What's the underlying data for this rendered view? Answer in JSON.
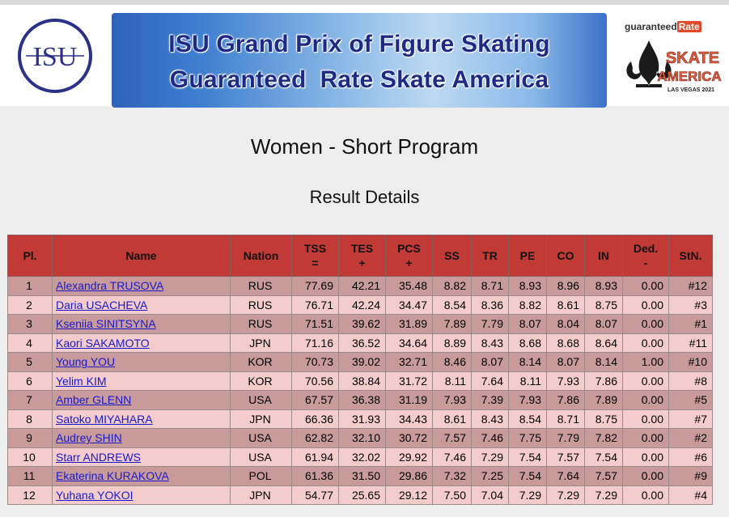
{
  "header": {
    "banner_line1": "ISU Grand Prix of Figure Skating",
    "banner_line2": "Guaranteed  Rate Skate America",
    "isu_logo_text": "ISU",
    "sponsor_text": "guaranteed",
    "sponsor_rate": "Rate",
    "skate_america_line1": "SKATE",
    "skate_america_line2": "AMERICA",
    "skate_america_sub": "LAS VEGAS 2021"
  },
  "page": {
    "title": "Women - Short Program",
    "subtitle": "Result Details"
  },
  "table": {
    "headers": {
      "pl": "Pl.",
      "name": "Name",
      "nation": "Nation",
      "tss": "TSS",
      "tss_sub": "=",
      "tes": "TES",
      "tes_sub": "+",
      "pcs": "PCS",
      "pcs_sub": "+",
      "ss": "SS",
      "tr": "TR",
      "pe": "PE",
      "co": "CO",
      "in": "IN",
      "ded": "Ded.",
      "ded_sub": "-",
      "stn": "StN."
    },
    "rows": [
      {
        "pl": "1",
        "name": "Alexandra TRUSOVA",
        "nation": "RUS",
        "tss": "77.69",
        "tes": "42.21",
        "pcs": "35.48",
        "ss": "8.82",
        "tr": "8.71",
        "pe": "8.93",
        "co": "8.96",
        "in": "8.93",
        "ded": "0.00",
        "stn": "#12"
      },
      {
        "pl": "2",
        "name": "Daria USACHEVA",
        "nation": "RUS",
        "tss": "76.71",
        "tes": "42.24",
        "pcs": "34.47",
        "ss": "8.54",
        "tr": "8.36",
        "pe": "8.82",
        "co": "8.61",
        "in": "8.75",
        "ded": "0.00",
        "stn": "#3"
      },
      {
        "pl": "3",
        "name": "Kseniia SINITSYNA",
        "nation": "RUS",
        "tss": "71.51",
        "tes": "39.62",
        "pcs": "31.89",
        "ss": "7.89",
        "tr": "7.79",
        "pe": "8.07",
        "co": "8.04",
        "in": "8.07",
        "ded": "0.00",
        "stn": "#1"
      },
      {
        "pl": "4",
        "name": "Kaori SAKAMOTO",
        "nation": "JPN",
        "tss": "71.16",
        "tes": "36.52",
        "pcs": "34.64",
        "ss": "8.89",
        "tr": "8.43",
        "pe": "8.68",
        "co": "8.68",
        "in": "8.64",
        "ded": "0.00",
        "stn": "#11"
      },
      {
        "pl": "5",
        "name": "Young YOU",
        "nation": "KOR",
        "tss": "70.73",
        "tes": "39.02",
        "pcs": "32.71",
        "ss": "8.46",
        "tr": "8.07",
        "pe": "8.14",
        "co": "8.07",
        "in": "8.14",
        "ded": "1.00",
        "stn": "#10"
      },
      {
        "pl": "6",
        "name": "Yelim KIM",
        "nation": "KOR",
        "tss": "70.56",
        "tes": "38.84",
        "pcs": "31.72",
        "ss": "8.11",
        "tr": "7.64",
        "pe": "8.11",
        "co": "7.93",
        "in": "7.86",
        "ded": "0.00",
        "stn": "#8"
      },
      {
        "pl": "7",
        "name": "Amber GLENN",
        "nation": "USA",
        "tss": "67.57",
        "tes": "36.38",
        "pcs": "31.19",
        "ss": "7.93",
        "tr": "7.39",
        "pe": "7.93",
        "co": "7.86",
        "in": "7.89",
        "ded": "0.00",
        "stn": "#5"
      },
      {
        "pl": "8",
        "name": "Satoko MIYAHARA",
        "nation": "JPN",
        "tss": "66.36",
        "tes": "31.93",
        "pcs": "34.43",
        "ss": "8.61",
        "tr": "8.43",
        "pe": "8.54",
        "co": "8.71",
        "in": "8.75",
        "ded": "0.00",
        "stn": "#7"
      },
      {
        "pl": "9",
        "name": "Audrey SHIN",
        "nation": "USA",
        "tss": "62.82",
        "tes": "32.10",
        "pcs": "30.72",
        "ss": "7.57",
        "tr": "7.46",
        "pe": "7.75",
        "co": "7.79",
        "in": "7.82",
        "ded": "0.00",
        "stn": "#2"
      },
      {
        "pl": "10",
        "name": "Starr ANDREWS",
        "nation": "USA",
        "tss": "61.94",
        "tes": "32.02",
        "pcs": "29.92",
        "ss": "7.46",
        "tr": "7.29",
        "pe": "7.54",
        "co": "7.57",
        "in": "7.54",
        "ded": "0.00",
        "stn": "#6"
      },
      {
        "pl": "11",
        "name": "Ekaterina KURAKOVA",
        "nation": "POL",
        "tss": "61.36",
        "tes": "31.50",
        "pcs": "29.86",
        "ss": "7.32",
        "tr": "7.25",
        "pe": "7.54",
        "co": "7.64",
        "in": "7.57",
        "ded": "0.00",
        "stn": "#9"
      },
      {
        "pl": "12",
        "name": "Yuhana YOKOI",
        "nation": "JPN",
        "tss": "54.77",
        "tes": "25.65",
        "pcs": "29.12",
        "ss": "7.50",
        "tr": "7.04",
        "pe": "7.29",
        "co": "7.29",
        "in": "7.29",
        "ded": "0.00",
        "stn": "#4"
      }
    ]
  },
  "colors": {
    "header_row": "#c13a36",
    "row_dark": "#c89a9a",
    "row_light": "#f4cccc",
    "link": "#1a1acc",
    "banner_text": "#1f2a86"
  }
}
